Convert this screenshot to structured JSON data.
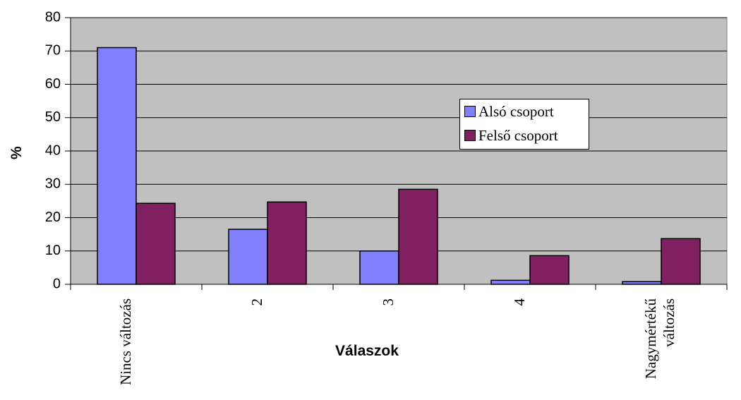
{
  "chart_data": {
    "type": "bar",
    "xlabel": "Válaszok",
    "ylabel": "%",
    "categories": [
      "Nincs változás",
      "2",
      "3",
      "4",
      "Nagymértékű változás"
    ],
    "series": [
      {
        "name": "Alsó csoport",
        "color": "#8080ff",
        "values": [
          71,
          16.5,
          10,
          1.2,
          0.8
        ]
      },
      {
        "name": "Felső csoport",
        "color": "#802060",
        "values": [
          24.3,
          24.7,
          28.5,
          8.6,
          13.7
        ]
      }
    ],
    "ylim": [
      0,
      80
    ],
    "yticks": [
      0,
      10,
      20,
      30,
      40,
      50,
      60,
      70,
      80
    ],
    "grid": true,
    "legend": "right"
  }
}
